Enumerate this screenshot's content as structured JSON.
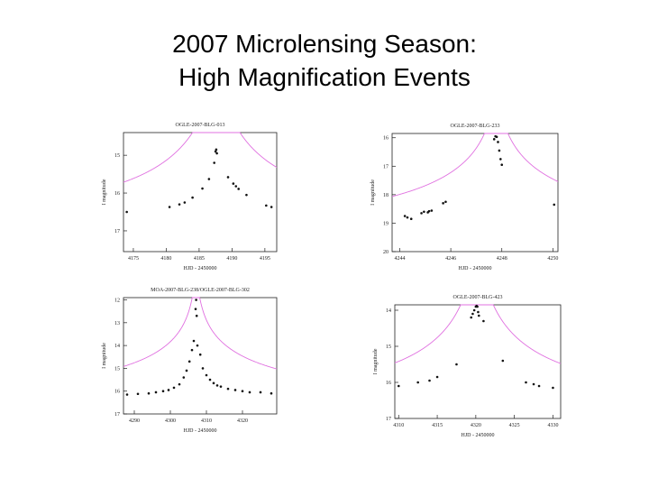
{
  "slide": {
    "title_line1": "2007 Microlensing Season:",
    "title_line2": "High Magnification Events"
  },
  "colors": {
    "model": "#e070e0",
    "points": "#111111",
    "axes": "#222222",
    "background": "#ffffff"
  },
  "chart_data": [
    {
      "type": "scatter",
      "title": "OGLE-2007-BLG-013",
      "xlabel": "HJD - 2450000",
      "ylabel": "I magnitude",
      "xlim": [
        4173.5,
        4196.8
      ],
      "ylim": [
        17.55,
        14.4
      ],
      "xticks": [
        4175,
        4180,
        4185,
        4190,
        4195
      ],
      "yticks": [
        15,
        16,
        17
      ],
      "model": {
        "t0": 4187.6,
        "u0": 0.05,
        "tE": 25,
        "base": 16.45,
        "top": 14.4
      },
      "x": [
        4174,
        4180.5,
        4182,
        4182.8,
        4184,
        4185.5,
        4186.5,
        4187.3,
        4187.5,
        4187.6,
        4187.7,
        4189.4,
        4190.2,
        4190.6,
        4191,
        4192.2,
        4195.2,
        4196
      ],
      "y": [
        16.5,
        16.37,
        16.3,
        16.25,
        16.12,
        15.88,
        15.63,
        15.2,
        14.9,
        14.85,
        14.95,
        15.58,
        15.75,
        15.82,
        15.89,
        16.05,
        16.33,
        16.37
      ]
    },
    {
      "type": "scatter",
      "title": "OGLE-2007-BLG-233",
      "xlabel": "HJD - 2450000",
      "ylabel": "I magnitude",
      "xlim": [
        4243.7,
        4250.2
      ],
      "ylim": [
        20,
        15.85
      ],
      "xticks": [
        4244,
        4246,
        4248,
        4250
      ],
      "yticks": [
        16,
        17,
        18,
        19,
        20
      ],
      "model": {
        "t0": 4247.78,
        "u0": 0.02,
        "tE": 10,
        "base": 19.1,
        "top": 15.85
      },
      "x": [
        4244.2,
        4244.3,
        4244.45,
        4244.85,
        4244.95,
        4245.1,
        4245.15,
        4245.25,
        4245.7,
        4245.8,
        4247.7,
        4247.75,
        4247.8,
        4247.85,
        4247.9,
        4247.95,
        4248.0,
        4250.05
      ],
      "y": [
        18.75,
        18.8,
        18.85,
        18.65,
        18.6,
        18.62,
        18.58,
        18.56,
        18.3,
        18.25,
        16.05,
        15.95,
        15.97,
        16.15,
        16.45,
        16.75,
        16.95,
        18.35
      ]
    },
    {
      "type": "scatter",
      "title": "MOA-2007-BLG-238/OGLE-2007-BLG-302",
      "xlabel": "HJD - 2450000",
      "ylabel": "I magnitude",
      "xlim": [
        4287,
        4329.5
      ],
      "ylim": [
        17,
        11.9
      ],
      "xticks": [
        4290,
        4300,
        4310,
        4320
      ],
      "yticks": [
        12,
        13,
        14,
        15,
        16,
        17
      ],
      "model": {
        "t0": 4307.1,
        "u0": 0.01,
        "tE": 60,
        "base": 16.15,
        "top": 11.9
      },
      "x": [
        4288,
        4291,
        4294,
        4296,
        4298,
        4299.5,
        4301,
        4302.5,
        4303.7,
        4304.5,
        4305.3,
        4306,
        4306.5,
        4307,
        4307.15,
        4307.3,
        4307.5,
        4308.3,
        4309,
        4310,
        4311,
        4312,
        4313,
        4314,
        4316,
        4318,
        4320,
        4322,
        4325,
        4328
      ],
      "y": [
        16.15,
        16.12,
        16.1,
        16.05,
        16.0,
        15.95,
        15.85,
        15.7,
        15.4,
        15.1,
        14.7,
        14.2,
        13.8,
        12.4,
        12.0,
        12.7,
        14.0,
        14.4,
        15.0,
        15.3,
        15.5,
        15.65,
        15.75,
        15.8,
        15.9,
        15.95,
        16.0,
        16.05,
        16.05,
        16.1
      ]
    },
    {
      "type": "scatter",
      "title": "OGLE-2007-BLG-423",
      "xlabel": "HJD - 2450000",
      "ylabel": "I magnitude",
      "xlim": [
        4309.5,
        4331
      ],
      "ylim": [
        17,
        13.85
      ],
      "xticks": [
        4310,
        4315,
        4320,
        4325,
        4330
      ],
      "yticks": [
        14,
        15,
        16,
        17
      ],
      "model": {
        "t0": 4320.15,
        "u0": 0.03,
        "tE": 20,
        "base": 16.25,
        "top": 13.85
      },
      "x": [
        4310,
        4312.5,
        4314,
        4315,
        4317.5,
        4319.4,
        4319.6,
        4319.8,
        4320.0,
        4320.1,
        4320.2,
        4320.3,
        4320.4,
        4321,
        4323.5,
        4326.5,
        4327.5,
        4328.2,
        4330
      ],
      "y": [
        16.1,
        16.0,
        15.95,
        15.85,
        15.5,
        14.2,
        14.1,
        14.0,
        13.9,
        13.88,
        13.9,
        14.05,
        14.15,
        14.3,
        15.4,
        16.0,
        16.05,
        16.1,
        16.15
      ]
    }
  ]
}
